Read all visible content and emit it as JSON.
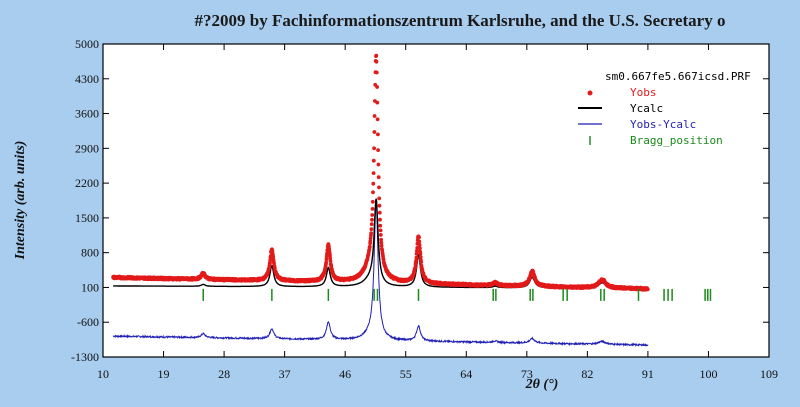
{
  "chart_data": {
    "type": "scatter",
    "title": "#?2009 by Fachinformationszentrum Karlsruhe, and the U.S. Secretary o",
    "xlabel": "2θ (°)",
    "ylabel": "Intensity (arb. units)",
    "xlim": [
      10,
      109
    ],
    "ylim": [
      -1300,
      5000
    ],
    "x_ticks": [
      10,
      19,
      28,
      37,
      46,
      55,
      64,
      73,
      82,
      91,
      100,
      109
    ],
    "y_ticks": [
      5000,
      4300,
      3600,
      2900,
      2200,
      1500,
      800,
      100,
      -600,
      -1300
    ],
    "legend_title": "sm0.667fe5.667icsd.PRF",
    "legend_position": "top-right",
    "legend": [
      {
        "label": "Yobs",
        "color": "#e31a1a"
      },
      {
        "label": "Ycalc",
        "color": "#000000"
      },
      {
        "label": "Yobs-Ycalc",
        "color": "#1f1fb4"
      },
      {
        "label": "Bragg_position",
        "color": "#1a8a1a"
      }
    ],
    "x_range_data": [
      11.5,
      91
    ],
    "background": {
      "obs_start": 300,
      "obs_end": 70,
      "calc_start": 130,
      "calc_end": 80
    },
    "peaks": [
      {
        "x": 24.9,
        "obs": 120,
        "calc": 40,
        "w": 0.35
      },
      {
        "x": 35.1,
        "obs": 620,
        "calc": 420,
        "w": 0.35
      },
      {
        "x": 43.5,
        "obs": 730,
        "calc": 380,
        "w": 0.35
      },
      {
        "x": 49.7,
        "obs": 200,
        "calc": 120,
        "w": 1.2
      },
      {
        "x": 50.6,
        "obs": 4450,
        "calc": 1700,
        "w": 0.35
      },
      {
        "x": 56.9,
        "obs": 950,
        "calc": 650,
        "w": 0.35
      },
      {
        "x": 68.3,
        "obs": 60,
        "calc": 30,
        "w": 0.4
      },
      {
        "x": 73.8,
        "obs": 300,
        "calc": 210,
        "w": 0.45
      },
      {
        "x": 84.2,
        "obs": 170,
        "calc": 110,
        "w": 0.6
      }
    ],
    "diff_offset": -1050,
    "bragg_y": -50,
    "bragg_positions": [
      24.9,
      35.1,
      43.5,
      50.3,
      50.8,
      56.9,
      68.0,
      68.4,
      73.5,
      73.9,
      78.4,
      79.0,
      84.0,
      84.5,
      89.6,
      93.4,
      94.0,
      94.6,
      99.5,
      99.9,
      100.3
    ]
  }
}
